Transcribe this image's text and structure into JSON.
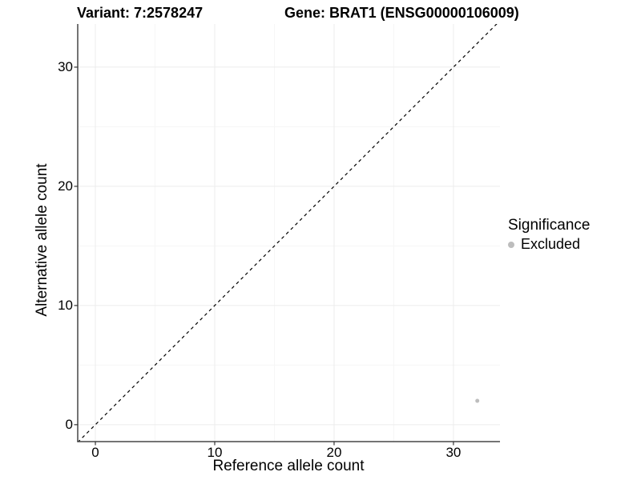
{
  "figure": {
    "title_left": "Variant: 7:2578247",
    "title_right": "Gene: BRAT1 (ENSG00000106009)"
  },
  "chart_data": {
    "type": "scatter",
    "title": "Variant: 7:2578247   Gene: BRAT1 (ENSG00000106009)",
    "xlabel": "Reference allele count",
    "ylabel": "Alternative allele count",
    "xlim": [
      -1.48,
      33.9
    ],
    "ylim": [
      -1.42,
      33.62
    ],
    "xticks": [
      0,
      10,
      20,
      30
    ],
    "yticks": [
      0,
      10,
      20,
      30
    ],
    "xticks_minor": [
      5,
      15,
      25
    ],
    "yticks_minor": [
      5,
      15,
      25
    ],
    "grid": "major+minor",
    "legend_position": "right",
    "identity_line": {
      "slope": 1,
      "intercept": 0,
      "style": "dashed",
      "color": "#000000"
    },
    "series": [
      {
        "name": "Excluded",
        "color": "#bdbdbd",
        "points": [
          {
            "x": 32,
            "y": 2
          }
        ]
      }
    ],
    "legend": {
      "title": "Significance",
      "entries": [
        {
          "label": "Excluded",
          "color": "#bdbdbd"
        }
      ]
    }
  },
  "colors": {
    "background": "#ffffff",
    "grid_major": "#ececec",
    "grid_minor": "#f6f6f6",
    "axis_line": "#464646",
    "tick_mark": "#333333",
    "point": "#bdbdbd",
    "text": "#000000"
  }
}
